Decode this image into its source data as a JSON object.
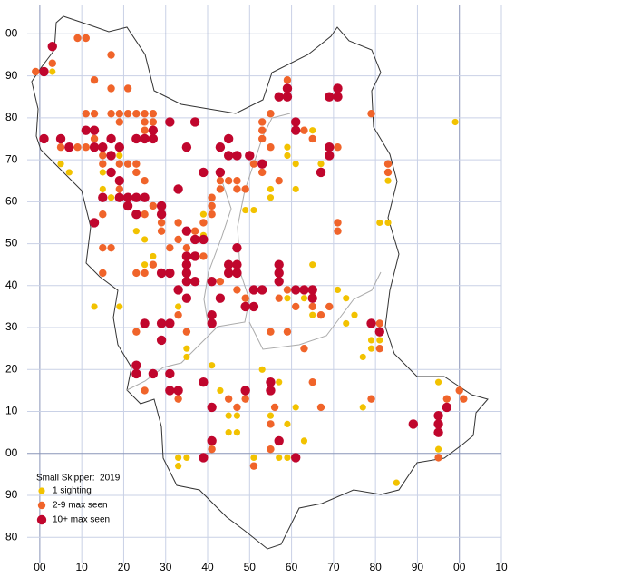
{
  "chart_data": {
    "type": "scatter",
    "title": "Small Skipper:  2019",
    "xlim": [
      -3,
      110
    ],
    "ylim": [
      -26,
      107
    ],
    "xticks": [
      {
        "value": 0,
        "label": "00"
      },
      10,
      20,
      30,
      40,
      50,
      60,
      70,
      80,
      90,
      {
        "value": 100,
        "label": "00"
      },
      {
        "value": 110,
        "label": "10"
      }
    ],
    "yticks": [
      {
        "value": -20,
        "label": "80"
      },
      {
        "value": -10,
        "label": "90"
      },
      {
        "value": 0,
        "label": "00"
      },
      10,
      20,
      30,
      40,
      50,
      60,
      70,
      80,
      90,
      {
        "value": 100,
        "label": "00"
      }
    ],
    "grid": true,
    "legend": "lower left",
    "series": [
      {
        "name": "1 sighting",
        "color": "#f2c200",
        "x": [
          3,
          3,
          5,
          5,
          7,
          15,
          19,
          15,
          13,
          17,
          21,
          19,
          13,
          23,
          25,
          25,
          27,
          33,
          35,
          35,
          39,
          39,
          41,
          43,
          49,
          51,
          55,
          55,
          61,
          61,
          59,
          59,
          65,
          67,
          65,
          65,
          63,
          59,
          71,
          73,
          73,
          75,
          79,
          77,
          79,
          81,
          81,
          81,
          83,
          83,
          59,
          53,
          57,
          55,
          59,
          61,
          63,
          59,
          57,
          51,
          45,
          47,
          49,
          47,
          33,
          35,
          33,
          85,
          95,
          95,
          99,
          45,
          77
        ],
        "y": [
          93,
          91,
          73,
          69,
          67,
          67,
          71,
          63,
          55,
          61,
          59,
          35,
          35,
          53,
          51,
          45,
          47,
          35,
          25,
          23,
          52,
          57,
          21,
          15,
          58,
          58,
          63,
          61,
          63,
          69,
          71,
          73,
          77,
          69,
          45,
          33,
          37,
          37,
          39,
          37,
          31,
          33,
          27,
          23,
          25,
          27,
          29,
          55,
          55,
          65,
          29,
          20,
          17,
          9,
          7,
          11,
          3,
          -1,
          -1,
          -1,
          9,
          9,
          15,
          5,
          -1,
          -1,
          -3,
          -7,
          17,
          1,
          79,
          5,
          11
        ]
      },
      {
        "name": "2-9 max seen",
        "color": "#f0642a",
        "x": [
          -1,
          3,
          9,
          11,
          13,
          17,
          21,
          17,
          11,
          13,
          17,
          19,
          21,
          23,
          25,
          27,
          19,
          25,
          27,
          25,
          5,
          9,
          11,
          13,
          15,
          15,
          19,
          21,
          23,
          23,
          25,
          25,
          27,
          29,
          29,
          33,
          33,
          37,
          39,
          41,
          41,
          41,
          43,
          43,
          45,
          47,
          49,
          47,
          51,
          53,
          57,
          55,
          53,
          53,
          53,
          55,
          59,
          63,
          65,
          71,
          71,
          71,
          79,
          83,
          83,
          23,
          25,
          27,
          31,
          35,
          39,
          43,
          47,
          49,
          57,
          59,
          61,
          65,
          67,
          69,
          55,
          59,
          63,
          65,
          67,
          49,
          45,
          47,
          55,
          56,
          55,
          51,
          41,
          33,
          25,
          33,
          23,
          35,
          81,
          79,
          81,
          97,
          95,
          100,
          101,
          15,
          15,
          17,
          15,
          19
        ],
        "y": [
          91,
          93,
          99,
          99,
          89,
          95,
          87,
          87,
          81,
          81,
          81,
          81,
          81,
          81,
          81,
          81,
          79,
          79,
          79,
          77,
          73,
          73,
          73,
          75,
          71,
          69,
          69,
          69,
          69,
          67,
          65,
          57,
          59,
          55,
          53,
          55,
          51,
          53,
          55,
          57,
          59,
          61,
          65,
          63,
          65,
          65,
          63,
          63,
          69,
          67,
          65,
          73,
          75,
          77,
          79,
          81,
          89,
          77,
          75,
          73,
          55,
          53,
          81,
          69,
          67,
          43,
          43,
          45,
          49,
          49,
          47,
          41,
          39,
          37,
          37,
          39,
          35,
          35,
          33,
          35,
          29,
          29,
          25,
          17,
          11,
          13,
          13,
          11,
          7,
          11,
          1,
          -3,
          1,
          13,
          15,
          33,
          29,
          29,
          25,
          13,
          31,
          13,
          -1,
          15,
          13,
          43,
          49,
          49,
          57,
          63
        ]
      },
      {
        "name": "10+ max seen",
        "color": "#c0062d",
        "x": [
          1,
          3,
          1,
          5,
          7,
          11,
          13,
          13,
          15,
          17,
          17,
          19,
          17,
          19,
          15,
          19,
          21,
          23,
          25,
          21,
          23,
          13,
          25,
          23,
          27,
          27,
          31,
          37,
          35,
          43,
          45,
          45,
          43,
          39,
          33,
          29,
          29,
          35,
          37,
          39,
          35,
          35,
          37,
          35,
          31,
          29,
          33,
          35,
          37,
          41,
          35,
          31,
          29,
          25,
          29,
          23,
          23,
          27,
          31,
          31,
          33,
          39,
          41,
          41,
          43,
          45,
          47,
          45,
          47,
          47,
          51,
          53,
          57,
          57,
          57,
          49,
          51,
          61,
          63,
          65,
          65,
          57,
          59,
          59,
          61,
          67,
          61,
          69,
          71,
          71,
          69,
          69,
          79,
          81,
          89,
          95,
          95,
          95,
          97,
          57,
          61,
          41,
          39,
          55,
          55,
          41,
          49,
          53,
          50,
          47
        ],
        "y": [
          91,
          97,
          75,
          75,
          73,
          77,
          77,
          73,
          73,
          75,
          71,
          73,
          67,
          65,
          61,
          61,
          61,
          61,
          61,
          59,
          57,
          55,
          75,
          75,
          77,
          75,
          79,
          79,
          73,
          73,
          75,
          71,
          67,
          67,
          63,
          57,
          59,
          53,
          51,
          51,
          47,
          45,
          47,
          43,
          43,
          43,
          39,
          41,
          41,
          41,
          37,
          31,
          31,
          31,
          27,
          21,
          19,
          19,
          19,
          15,
          15,
          17,
          31,
          33,
          37,
          45,
          45,
          43,
          43,
          49,
          39,
          39,
          45,
          43,
          41,
          35,
          35,
          39,
          39,
          39,
          37,
          85,
          87,
          85,
          79,
          67,
          77,
          85,
          87,
          85,
          71,
          73,
          31,
          29,
          7,
          9,
          7,
          5,
          11,
          3,
          -1,
          3,
          -1,
          15,
          17,
          11,
          15,
          69,
          71,
          71
        ]
      }
    ]
  }
}
